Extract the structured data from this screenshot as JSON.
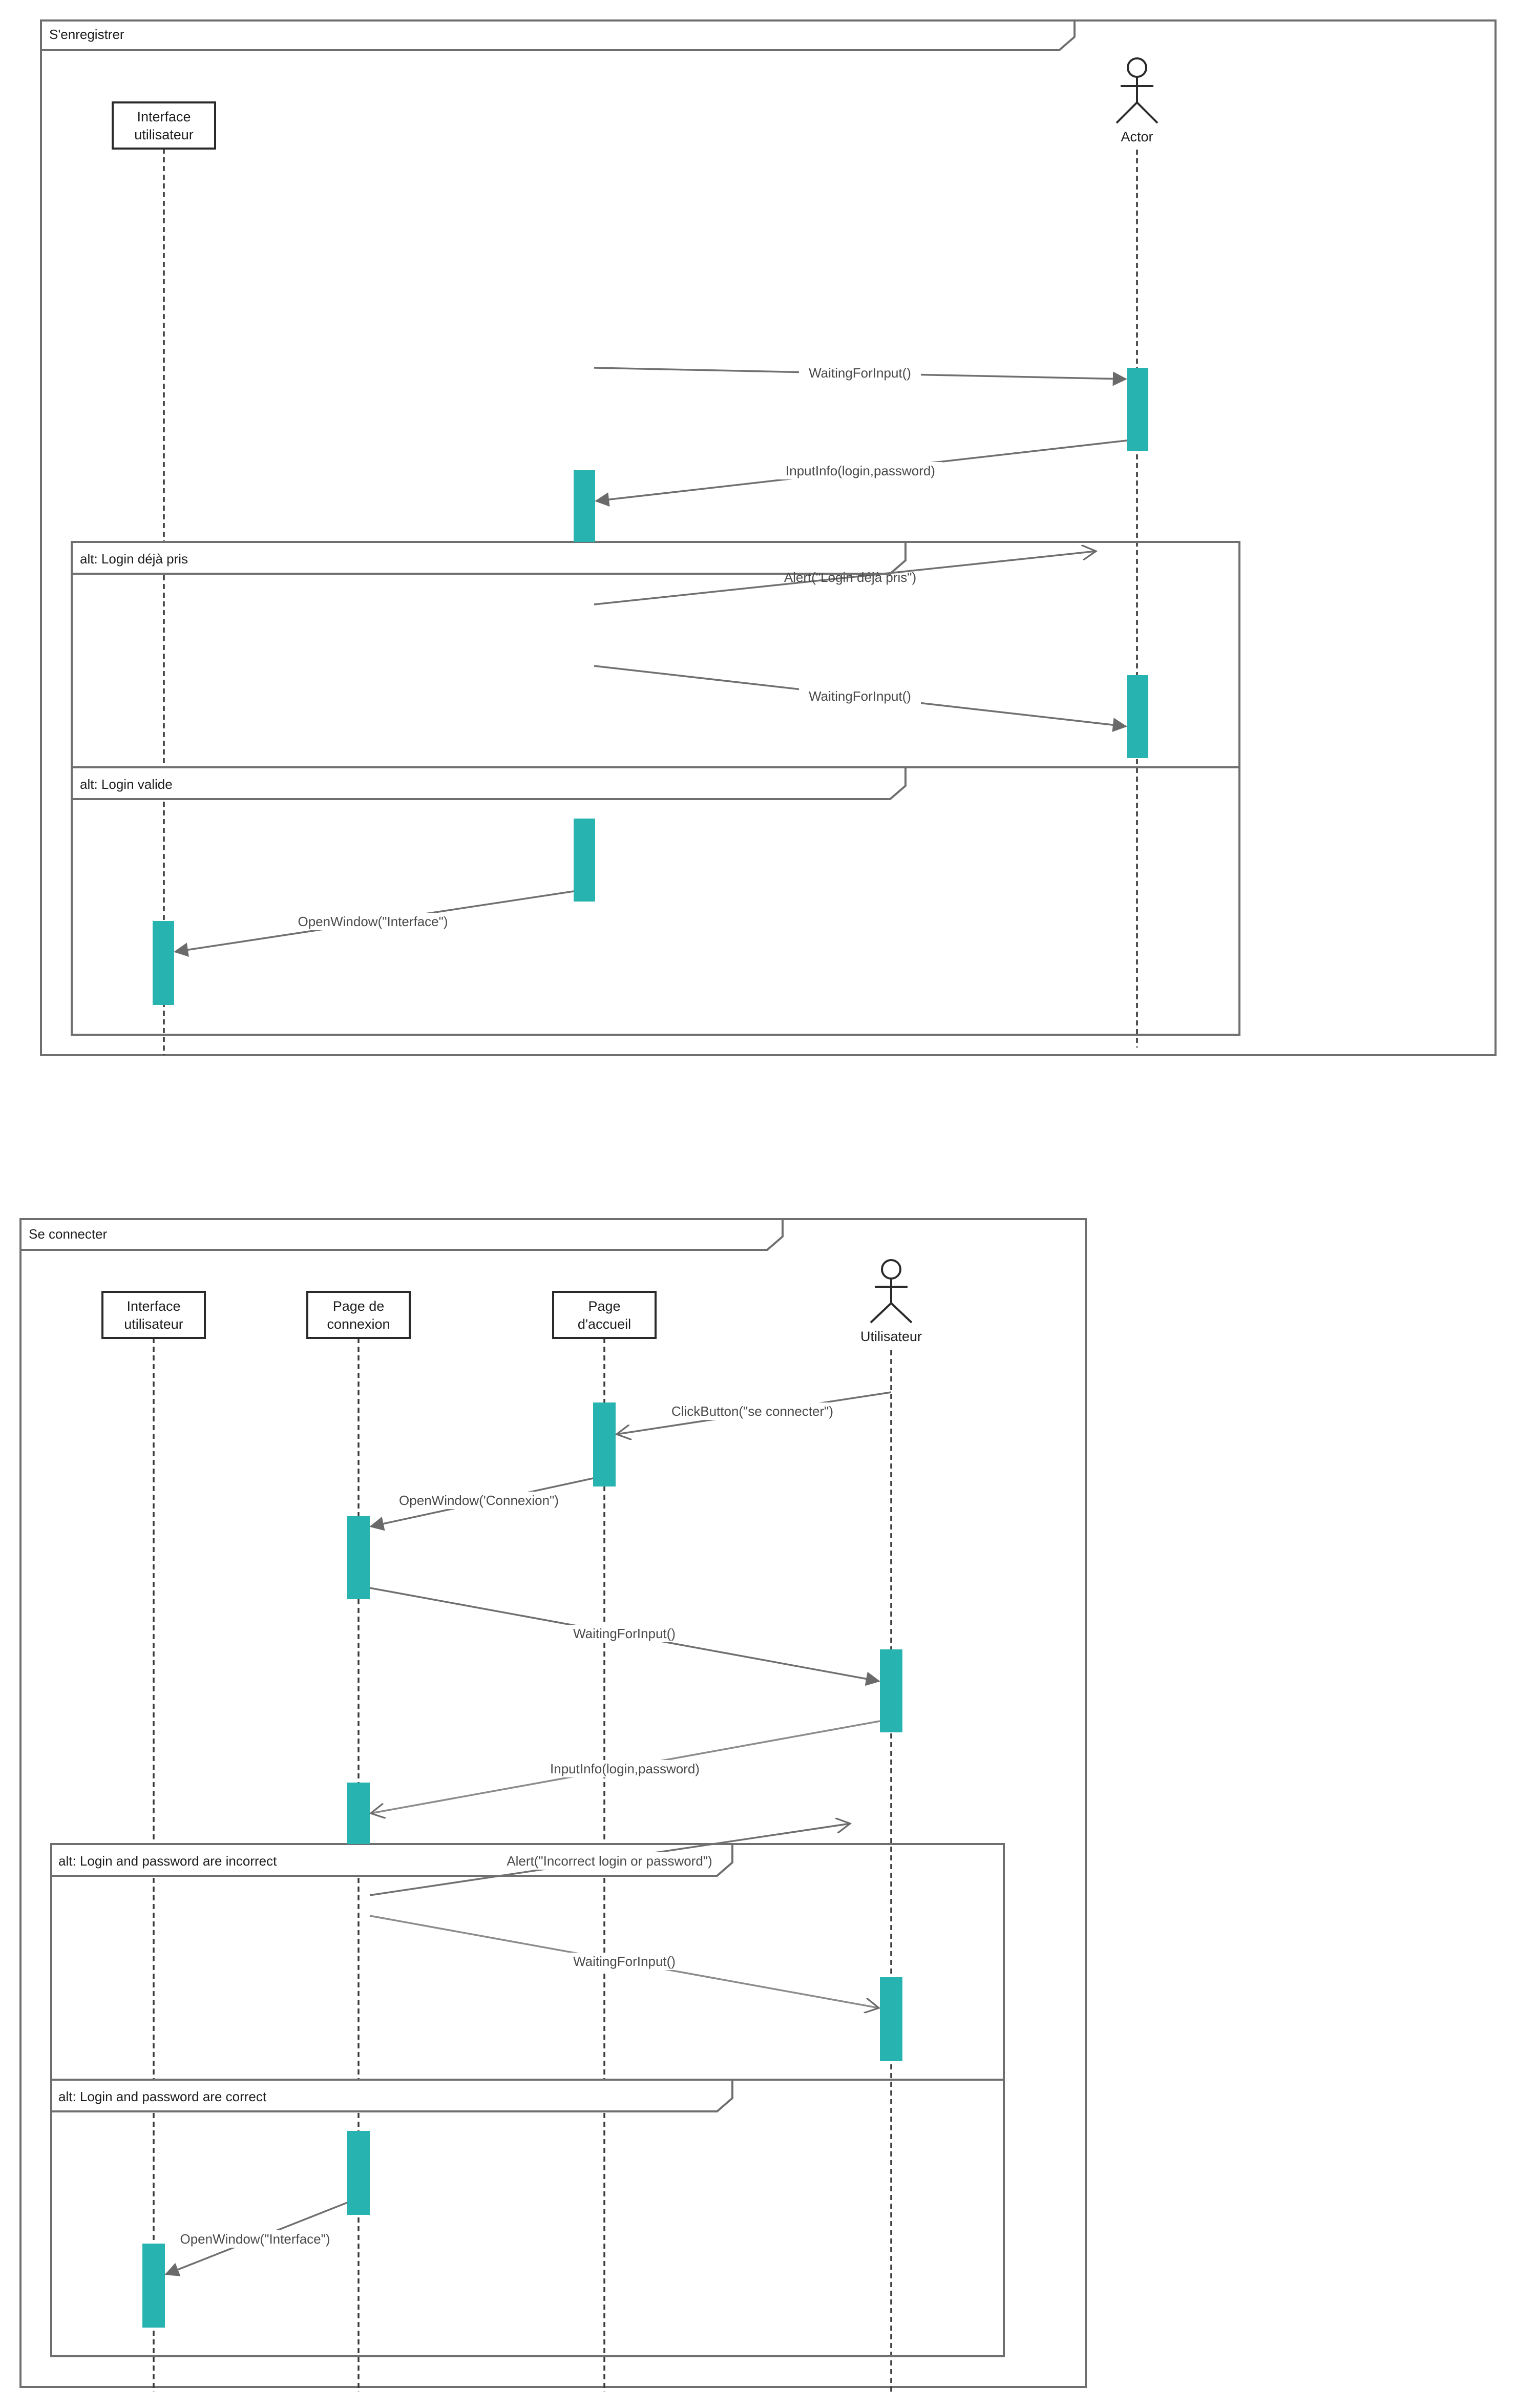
{
  "diagram1": {
    "title": "S'enregistrer",
    "participants": {
      "ui": "Interface\nutilisateur",
      "actor": "Actor"
    },
    "fragments": {
      "alt1": "alt: Login déjà pris",
      "alt2": "alt: Login valide"
    },
    "messages": {
      "m1": "WaitingForInput()",
      "m2": "InputInfo(login,password)",
      "m3": "Alert(\"Login déjà pris\")",
      "m4": "WaitingForInput()",
      "m5": "OpenWindow(\"Interface\")"
    }
  },
  "diagram2": {
    "title": "Se connecter",
    "participants": {
      "ui": "Interface\nutilisateur",
      "login": "Page de\nconnexion",
      "home": "Page\nd'accueil",
      "user": "Utilisateur"
    },
    "fragments": {
      "alt1": "alt: Login and password are incorrect",
      "alt2": "alt: Login and password are correct"
    },
    "messages": {
      "m1": "ClickButton(\"se connecter\")",
      "m2": "OpenWindow('Connexion\")",
      "m3": "WaitingForInput()",
      "m4": "InputInfo(login,password)",
      "m5": "Alert(\"Incorrect login or password\")",
      "m6": "WaitingForInput()",
      "m7": "OpenWindow(\"Interface\")"
    }
  }
}
